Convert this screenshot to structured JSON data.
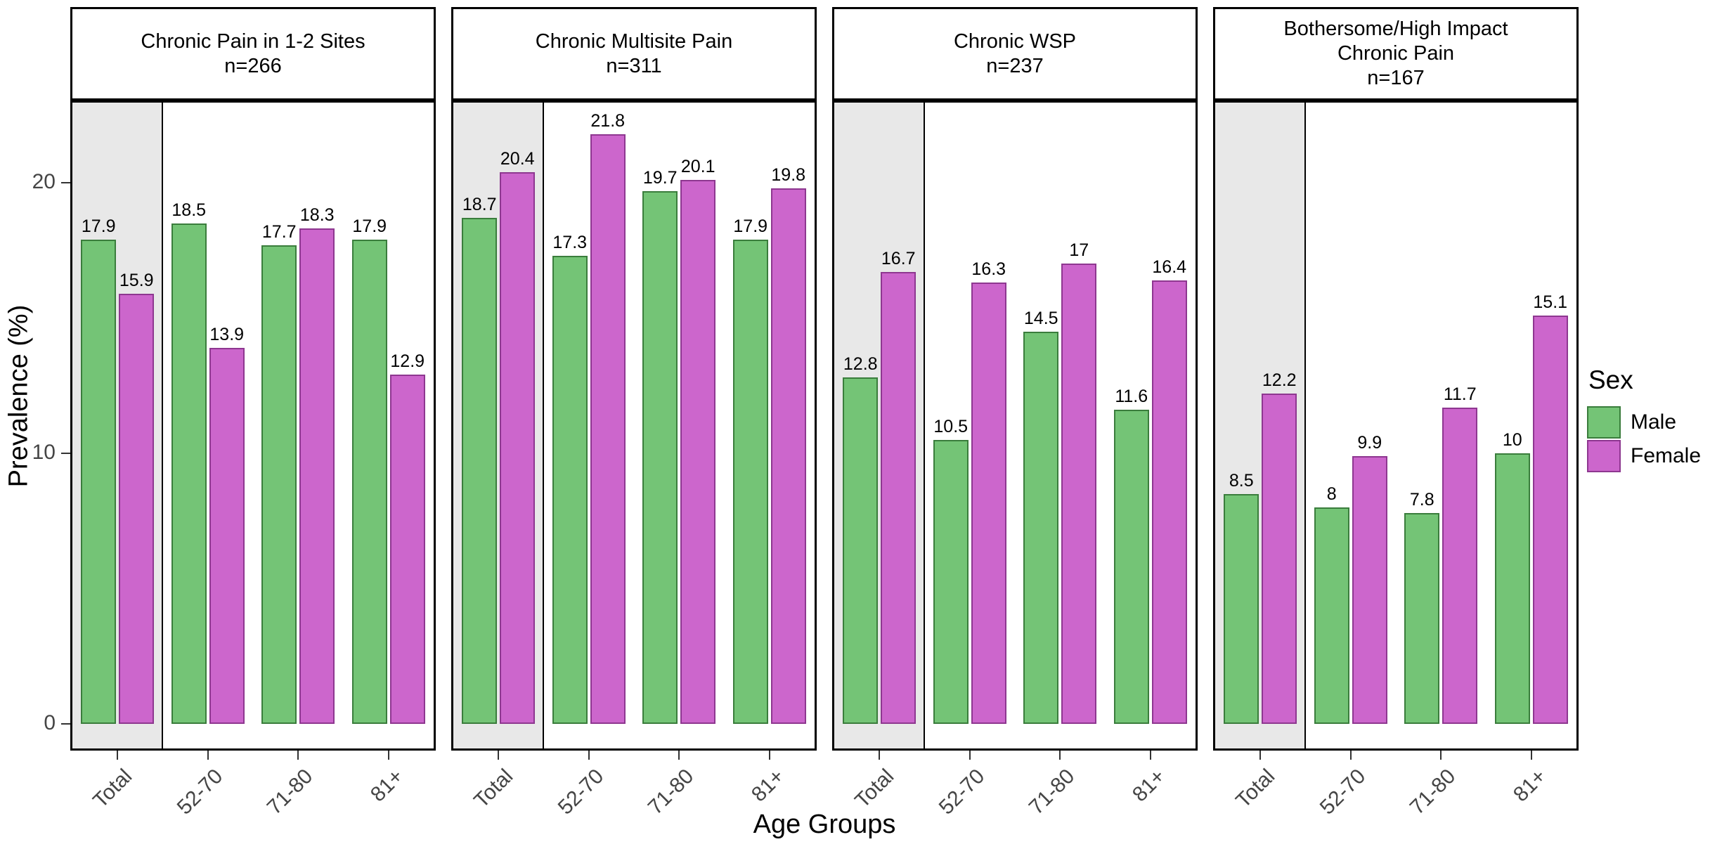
{
  "figure": {
    "ylabel": "Prevalence (%)",
    "xlabel": "Age Groups",
    "legend": {
      "title": "Sex",
      "entries": [
        {
          "label": "Male",
          "color": "#74c476",
          "border": "#3a7d3c"
        },
        {
          "label": "Female",
          "color": "#cc66cc",
          "border": "#8e3790"
        }
      ]
    }
  },
  "chart_data": {
    "type": "bar",
    "categories": [
      "Total",
      "52-70",
      "71-80",
      "81+"
    ],
    "xlabel": "Age Groups",
    "ylabel": "Prevalence (%)",
    "yticks": [
      0,
      10,
      20
    ],
    "ytick_labels": [
      "0",
      "10",
      "20"
    ],
    "ylim": [
      -1.1,
      23.0
    ],
    "grid": false,
    "legend_position": "right",
    "legend_title": "Sex",
    "series_colors": {
      "Male": "#74c476",
      "Female": "#cc66cc"
    },
    "series_borders": {
      "Male": "#3a7d3c",
      "Female": "#8e3790"
    },
    "total_band_color": "#e8e8e8",
    "facets": [
      {
        "title_lines": [
          "Chronic Pain in 1-2 Sites",
          "n=266"
        ],
        "series": [
          {
            "name": "Male",
            "values": [
              17.9,
              18.5,
              17.7,
              17.9
            ],
            "labels": [
              "17.9",
              "18.5",
              "17.7",
              "17.9"
            ]
          },
          {
            "name": "Female",
            "values": [
              15.9,
              13.9,
              18.3,
              12.9
            ],
            "labels": [
              "15.9",
              "13.9",
              "18.3",
              "12.9"
            ]
          }
        ]
      },
      {
        "title_lines": [
          "Chronic Multisite Pain",
          "n=311"
        ],
        "series": [
          {
            "name": "Male",
            "values": [
              18.7,
              17.3,
              19.7,
              17.9
            ],
            "labels": [
              "18.7",
              "17.3",
              "19.7",
              "17.9"
            ]
          },
          {
            "name": "Female",
            "values": [
              20.4,
              21.8,
              20.1,
              19.8
            ],
            "labels": [
              "20.4",
              "21.8",
              "20.1",
              "19.8"
            ]
          }
        ]
      },
      {
        "title_lines": [
          "Chronic WSP",
          "n=237"
        ],
        "series": [
          {
            "name": "Male",
            "values": [
              12.8,
              10.5,
              14.5,
              11.6
            ],
            "labels": [
              "12.8",
              "10.5",
              "14.5",
              "11.6"
            ]
          },
          {
            "name": "Female",
            "values": [
              16.7,
              16.3,
              17.0,
              16.4
            ],
            "labels": [
              "16.7",
              "16.3",
              "17",
              "16.4"
            ]
          }
        ]
      },
      {
        "title_lines": [
          "Bothersome/High Impact",
          "Chronic Pain",
          "n=167"
        ],
        "series": [
          {
            "name": "Male",
            "values": [
              8.5,
              8.0,
              7.8,
              10.0
            ],
            "labels": [
              "8.5",
              "8",
              "7.8",
              "10"
            ]
          },
          {
            "name": "Female",
            "values": [
              12.2,
              9.9,
              11.7,
              15.1
            ],
            "labels": [
              "12.2",
              "9.9",
              "11.7",
              "15.1"
            ]
          }
        ]
      }
    ]
  }
}
